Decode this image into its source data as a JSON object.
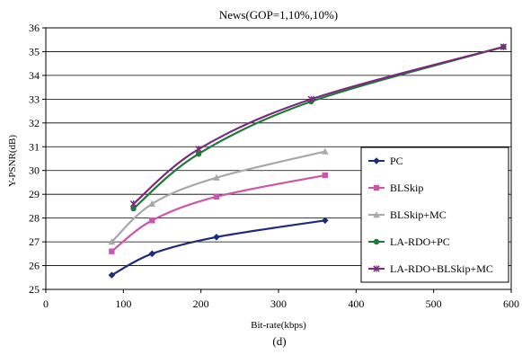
{
  "chart_data": {
    "type": "line",
    "title": "News(GOP=1,10%,10%)",
    "xlabel": "Bit-rate(kbps)",
    "ylabel": "Y-PSNR(dB)",
    "caption": "(d)",
    "xlim": [
      0,
      600
    ],
    "ylim": [
      25,
      36
    ],
    "xticks": [
      0,
      100,
      200,
      300,
      400,
      500,
      600
    ],
    "yticks": [
      25,
      26,
      27,
      28,
      29,
      30,
      31,
      32,
      33,
      34,
      35,
      36
    ],
    "grid": "horizontal",
    "legend_position": "right",
    "series": [
      {
        "name": "PC",
        "color": "#1f2a78",
        "marker": "diamond",
        "points": [
          [
            85,
            25.6
          ],
          [
            137,
            26.5
          ],
          [
            220,
            27.2
          ],
          [
            360,
            27.9
          ]
        ]
      },
      {
        "name": "BLSkip",
        "color": "#cc55aa",
        "marker": "square",
        "points": [
          [
            85,
            26.6
          ],
          [
            137,
            27.9
          ],
          [
            220,
            28.9
          ],
          [
            360,
            29.8
          ]
        ]
      },
      {
        "name": "BLSkip+MC",
        "color": "#a8a8a8",
        "marker": "triangle",
        "points": [
          [
            85,
            27.0
          ],
          [
            137,
            28.6
          ],
          [
            220,
            29.7
          ],
          [
            360,
            30.8
          ]
        ]
      },
      {
        "name": "LA-RDO+PC",
        "color": "#1f7a3a",
        "marker": "circle",
        "points": [
          [
            113,
            28.4
          ],
          [
            197,
            30.7
          ],
          [
            342,
            32.9
          ],
          [
            590,
            35.2
          ]
        ]
      },
      {
        "name": "LA-RDO+BLSkip+MC",
        "color": "#7a2a7a",
        "marker": "star",
        "points": [
          [
            113,
            28.6
          ],
          [
            197,
            30.9
          ],
          [
            342,
            33.0
          ],
          [
            590,
            35.2
          ]
        ]
      }
    ]
  }
}
